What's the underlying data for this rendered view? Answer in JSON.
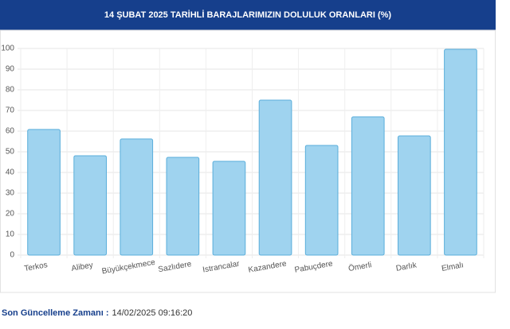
{
  "chart_data": {
    "type": "bar",
    "title": "14 ŞUBAT 2025 TARİHLİ BARAJLARIMIZIN DOLULUK ORANLARI (%)",
    "categories": [
      "Terkos",
      "Alibey",
      "Büyükçekmece",
      "Sazlıdere",
      "Istrancalar",
      "Kazandere",
      "Pabuçdere",
      "Ömerli",
      "Darlık",
      "Elmalı"
    ],
    "values": [
      60.8,
      48.1,
      56.2,
      47.3,
      45.4,
      75.0,
      53.1,
      66.9,
      57.7,
      99.6
    ],
    "color": "#9fd3ef",
    "ylim": [
      0,
      100
    ],
    "yticks": [
      0,
      10,
      20,
      30,
      40,
      50,
      60,
      70,
      80,
      90,
      100
    ],
    "grid": true
  },
  "footer": {
    "label": "Son Güncelleme Zamanı :",
    "value": "14/02/2025 09:16:20"
  }
}
